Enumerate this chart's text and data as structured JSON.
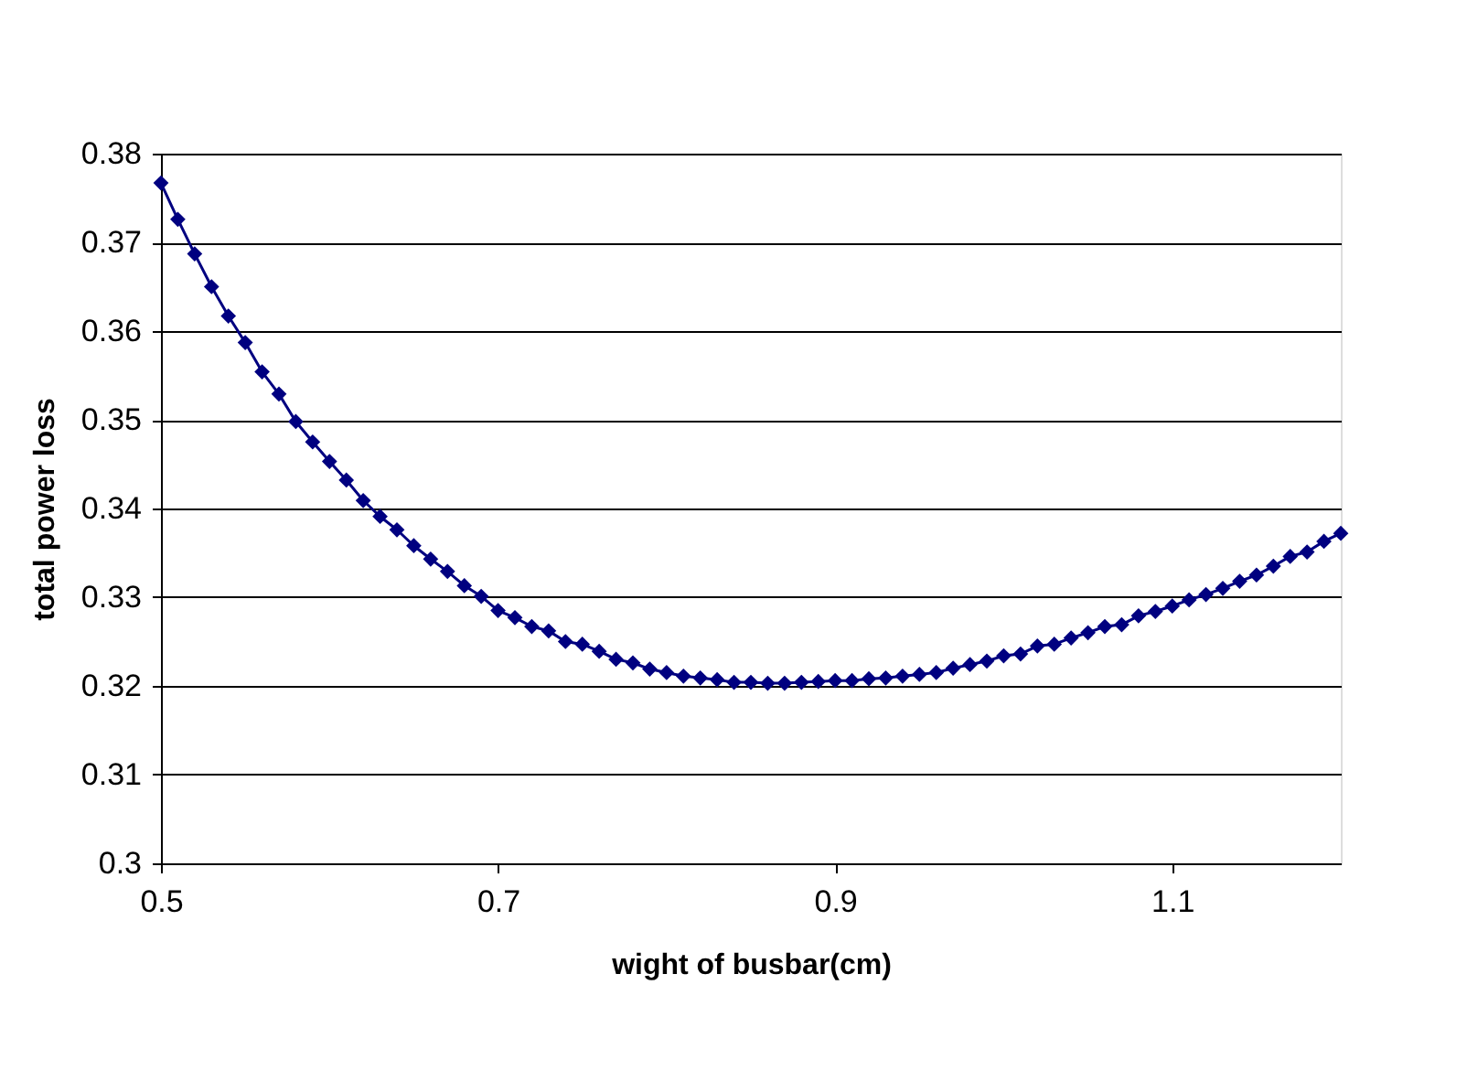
{
  "chart_data": {
    "type": "line",
    "xlabel": "wight of busbar(cm)",
    "ylabel": "total power loss",
    "x": [
      0.5,
      0.51,
      0.52,
      0.53,
      0.54,
      0.55,
      0.56,
      0.57,
      0.58,
      0.59,
      0.6,
      0.61,
      0.62,
      0.63,
      0.64,
      0.65,
      0.66,
      0.67,
      0.68,
      0.69,
      0.7,
      0.71,
      0.72,
      0.73,
      0.74,
      0.75,
      0.76,
      0.77,
      0.78,
      0.79,
      0.8,
      0.81,
      0.82,
      0.83,
      0.84,
      0.85,
      0.86,
      0.87,
      0.88,
      0.89,
      0.9,
      0.91,
      0.92,
      0.93,
      0.94,
      0.95,
      0.96,
      0.97,
      0.98,
      0.99,
      1.0,
      1.01,
      1.02,
      1.03,
      1.04,
      1.05,
      1.06,
      1.07,
      1.08,
      1.09,
      1.1,
      1.11,
      1.12,
      1.13,
      1.14,
      1.15,
      1.16,
      1.17,
      1.18,
      1.19,
      1.2
    ],
    "series": [
      {
        "color": "#000080",
        "values": [
          0.3767,
          0.3726,
          0.3687,
          0.365,
          0.3617,
          0.3587,
          0.3554,
          0.3529,
          0.3498,
          0.3475,
          0.3453,
          0.3432,
          0.3409,
          0.3391,
          0.3376,
          0.3358,
          0.3343,
          0.3329,
          0.3313,
          0.3301,
          0.3285,
          0.3277,
          0.3267,
          0.3262,
          0.325,
          0.3247,
          0.3239,
          0.323,
          0.3226,
          0.3219,
          0.3215,
          0.3211,
          0.3209,
          0.3207,
          0.3204,
          0.3204,
          0.3203,
          0.3203,
          0.3204,
          0.3205,
          0.3206,
          0.3206,
          0.3208,
          0.3209,
          0.3211,
          0.3213,
          0.3215,
          0.322,
          0.3224,
          0.3228,
          0.3234,
          0.3236,
          0.3245,
          0.3247,
          0.3254,
          0.326,
          0.3267,
          0.3269,
          0.3279,
          0.3284,
          0.329,
          0.3297,
          0.3303,
          0.331,
          0.3318,
          0.3325,
          0.3335,
          0.3346,
          0.3351,
          0.3363,
          0.3372
        ]
      }
    ],
    "xlim": [
      0.5,
      1.2
    ],
    "xticks": [
      0.5,
      0.7,
      0.9,
      1.1
    ],
    "ylim": [
      0.3,
      0.38
    ],
    "yticks": [
      0.3,
      0.31,
      0.32,
      0.33,
      0.34,
      0.35,
      0.36,
      0.37,
      0.38
    ],
    "grid": "y",
    "marker": "diamond",
    "line_style": "solid"
  }
}
